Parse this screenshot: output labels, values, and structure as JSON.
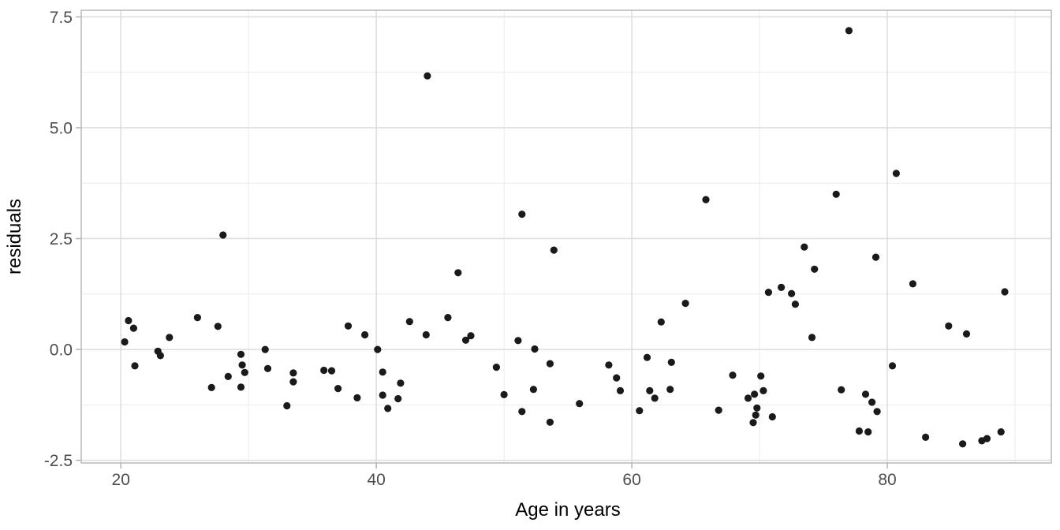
{
  "chart_data": {
    "type": "scatter",
    "title": "",
    "xlabel": "Age in years",
    "ylabel": "residuals",
    "legend": "none",
    "grid": "major and minor, light gray on white panel",
    "xlim": [
      16.9,
      92.84
    ],
    "ylim": [
      -2.56,
      7.65
    ],
    "x_major_ticks": [
      20,
      40,
      60,
      80
    ],
    "x_major_tick_labels": [
      "20",
      "40",
      "60",
      "80"
    ],
    "x_minor_ticks": [
      30,
      50,
      70,
      90
    ],
    "y_major_ticks": [
      7.5,
      5.0,
      2.5,
      0.0,
      -2.5
    ],
    "y_major_tick_labels": [
      "7.5",
      "5.0",
      "2.5",
      "0.0",
      "-2.5"
    ],
    "y_minor_ticks": [
      6.25,
      3.75,
      1.25,
      -1.25
    ],
    "point_color": "#1a1a1a",
    "theme": {
      "background": "#ffffff",
      "panel_border": "#b9b9b9",
      "grid_major": "#dcdcdc",
      "grid_minor": "#ebebeb",
      "tick_mark_color": "#b3b3b3",
      "tick_label_color": "#4d4d4d",
      "axis_title_color": "#000000"
    },
    "points": [
      [
        20.3,
        0.17
      ],
      [
        20.6,
        0.65
      ],
      [
        21.0,
        0.48
      ],
      [
        21.1,
        -0.37
      ],
      [
        22.9,
        -0.04
      ],
      [
        23.1,
        -0.14
      ],
      [
        23.8,
        0.27
      ],
      [
        26.0,
        0.72
      ],
      [
        27.1,
        -0.86
      ],
      [
        27.6,
        0.52
      ],
      [
        28.0,
        2.58
      ],
      [
        28.4,
        -0.61
      ],
      [
        29.4,
        -0.11
      ],
      [
        29.4,
        -0.85
      ],
      [
        29.5,
        -0.35
      ],
      [
        29.7,
        -0.52
      ],
      [
        31.3,
        0.0
      ],
      [
        31.5,
        -0.43
      ],
      [
        33.0,
        -1.27
      ],
      [
        33.5,
        -0.53
      ],
      [
        33.5,
        -0.73
      ],
      [
        35.9,
        -0.47
      ],
      [
        36.5,
        -0.48
      ],
      [
        37.0,
        -0.88
      ],
      [
        37.8,
        0.53
      ],
      [
        38.5,
        -1.09
      ],
      [
        39.1,
        0.33
      ],
      [
        40.1,
        0.0
      ],
      [
        40.5,
        -0.51
      ],
      [
        40.5,
        -1.03
      ],
      [
        40.9,
        -1.33
      ],
      [
        41.7,
        -1.11
      ],
      [
        41.9,
        -0.76
      ],
      [
        42.6,
        0.63
      ],
      [
        43.9,
        0.33
      ],
      [
        44.0,
        6.17
      ],
      [
        45.6,
        0.72
      ],
      [
        46.4,
        1.73
      ],
      [
        47.0,
        0.21
      ],
      [
        47.4,
        0.31
      ],
      [
        49.4,
        -0.4
      ],
      [
        50.0,
        -1.02
      ],
      [
        51.1,
        0.2
      ],
      [
        51.4,
        3.05
      ],
      [
        51.4,
        -1.4
      ],
      [
        52.3,
        -0.9
      ],
      [
        52.4,
        0.01
      ],
      [
        53.6,
        -0.32
      ],
      [
        53.6,
        -1.64
      ],
      [
        53.9,
        2.24
      ],
      [
        55.9,
        -1.22
      ],
      [
        58.2,
        -0.35
      ],
      [
        58.8,
        -0.64
      ],
      [
        59.1,
        -0.93
      ],
      [
        60.6,
        -1.38
      ],
      [
        61.2,
        -0.18
      ],
      [
        61.4,
        -0.93
      ],
      [
        61.8,
        -1.1
      ],
      [
        62.3,
        0.62
      ],
      [
        63.0,
        -0.9
      ],
      [
        63.1,
        -0.29
      ],
      [
        64.2,
        1.04
      ],
      [
        65.8,
        3.38
      ],
      [
        66.8,
        -1.37
      ],
      [
        67.9,
        -0.58
      ],
      [
        69.1,
        -1.1
      ],
      [
        69.5,
        -1.65
      ],
      [
        69.6,
        -1.01
      ],
      [
        69.7,
        -1.48
      ],
      [
        69.8,
        -1.32
      ],
      [
        70.1,
        -0.6
      ],
      [
        70.3,
        -0.93
      ],
      [
        70.7,
        1.29
      ],
      [
        71.0,
        -1.52
      ],
      [
        71.7,
        1.4
      ],
      [
        72.5,
        1.26
      ],
      [
        72.8,
        1.02
      ],
      [
        73.5,
        2.31
      ],
      [
        74.1,
        0.27
      ],
      [
        74.3,
        1.81
      ],
      [
        76.0,
        3.5
      ],
      [
        76.4,
        -0.91
      ],
      [
        77.0,
        7.19
      ],
      [
        77.8,
        -1.84
      ],
      [
        78.3,
        -1.01
      ],
      [
        78.5,
        -1.86
      ],
      [
        78.8,
        -1.19
      ],
      [
        79.1,
        2.08
      ],
      [
        79.2,
        -1.4
      ],
      [
        80.4,
        -0.37
      ],
      [
        80.7,
        3.97
      ],
      [
        82.0,
        1.48
      ],
      [
        83.0,
        -1.98
      ],
      [
        84.8,
        0.53
      ],
      [
        85.9,
        -2.13
      ],
      [
        86.2,
        0.35
      ],
      [
        87.4,
        -2.06
      ],
      [
        87.8,
        -2.01
      ],
      [
        88.9,
        -1.86
      ],
      [
        89.2,
        1.3
      ]
    ]
  }
}
